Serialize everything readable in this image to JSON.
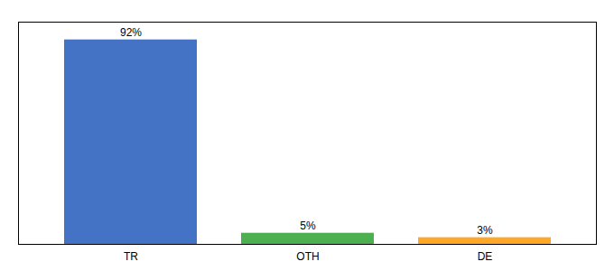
{
  "chart_data": {
    "type": "bar",
    "categories": [
      "TR",
      "OTH",
      "DE"
    ],
    "values": [
      92,
      5,
      3
    ],
    "value_labels": [
      "92%",
      "5%",
      "3%"
    ],
    "colors": [
      "#4472C4",
      "#4CAF50",
      "#FFA726"
    ],
    "ylim": [
      0,
      100
    ],
    "data_labels": true,
    "tick_labels": "x",
    "grid": false
  }
}
